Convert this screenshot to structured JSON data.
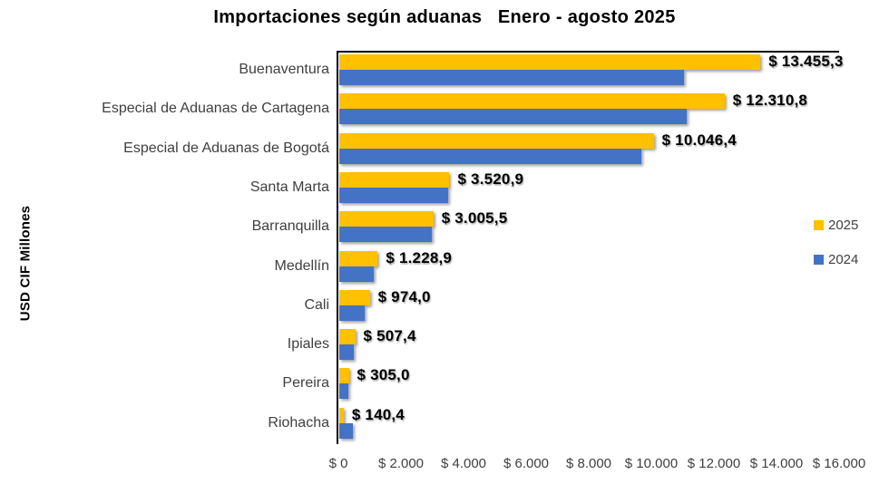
{
  "chart_data": {
    "type": "bar",
    "orientation": "horizontal",
    "title": "Importaciones según aduanas   Enero - agosto 2025",
    "ylabel": "USD CIF Millones",
    "xlim": [
      0,
      16000
    ],
    "x_ticks": [
      "$ 0",
      "$ 2.000",
      "$ 4.000",
      "$ 6.000",
      "$ 8.000",
      "$ 10.000",
      "$ 12.000",
      "$ 14.000",
      "$ 16.000"
    ],
    "grid": false,
    "legend_position": "right",
    "categories": [
      "Buenaventura",
      "Especial de Aduanas de Cartagena",
      "Especial de Aduanas de Bogotá",
      "Santa Marta",
      "Barranquilla",
      "Medellín",
      "Cali",
      "Ipiales",
      "Pereira",
      "Riohacha"
    ],
    "series": [
      {
        "name": "2025",
        "color": "#FFC000",
        "values": [
          13455.3,
          12310.8,
          10046.4,
          3520.9,
          3005.5,
          1228.9,
          974.0,
          507.4,
          305.0,
          140.4
        ],
        "labels": [
          "$ 13.455,3",
          "$ 12.310,8",
          "$ 10.046,4",
          "$ 3.520,9",
          "$ 3.005,5",
          "$ 1.228,9",
          "$ 974,0",
          "$ 507,4",
          "$ 305,0",
          "$ 140,4"
        ]
      },
      {
        "name": "2024",
        "color": "#4472C4",
        "values": [
          11000,
          11100,
          9650,
          3490,
          2950,
          1100,
          800,
          460,
          300,
          430
        ]
      }
    ]
  }
}
